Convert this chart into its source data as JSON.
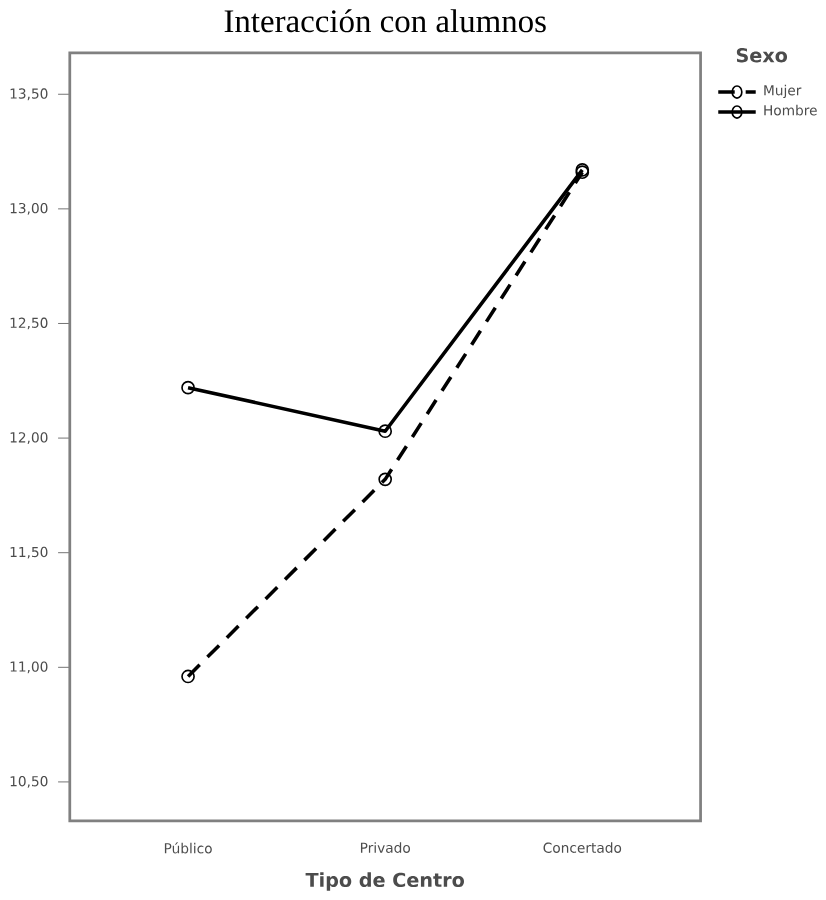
{
  "chart_data": {
    "type": "line",
    "title": "Interacción con alumnos",
    "xlabel": "Tipo de Centro",
    "legend_title": "Sexo",
    "categories": [
      "Público",
      "Privado",
      "Concertado"
    ],
    "series": [
      {
        "name": "Mujer",
        "color": "#000000",
        "line_style": "dashed",
        "values": [
          10.96,
          11.82,
          13.16
        ]
      },
      {
        "name": "Hombre",
        "color": "#000000",
        "line_style": "solid",
        "values": [
          12.22,
          12.03,
          13.17
        ]
      }
    ],
    "ylim": [
      10.33,
      13.68
    ],
    "yticks": [
      {
        "value": 10.5,
        "label": "10,50"
      },
      {
        "value": 11.0,
        "label": "11,00"
      },
      {
        "value": 11.5,
        "label": "11,50"
      },
      {
        "value": 12.0,
        "label": "12,00"
      },
      {
        "value": 12.5,
        "label": "12,50"
      },
      {
        "value": 13.0,
        "label": "13,00"
      },
      {
        "value": 13.5,
        "label": "13,50"
      }
    ],
    "marker": "circle",
    "legend": "top right",
    "grid": false
  }
}
